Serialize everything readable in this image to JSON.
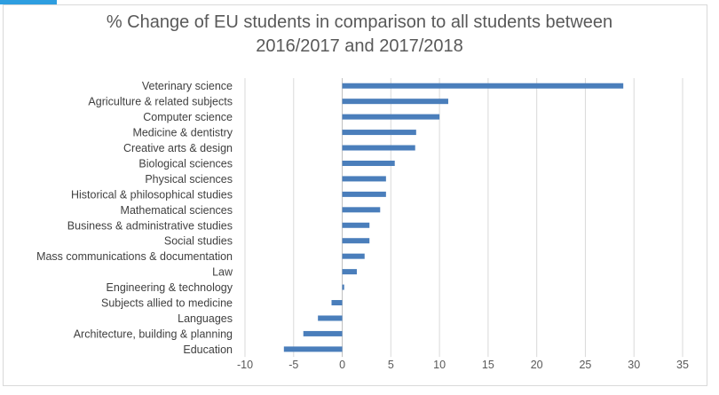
{
  "chart_data": {
    "type": "bar",
    "orientation": "horizontal",
    "title_lines": [
      "% Change of EU students in comparison to all students between",
      "2016/2017 and 2017/2018"
    ],
    "categories": [
      "Veterinary science",
      "Agriculture & related subjects",
      "Computer science",
      "Medicine & dentistry",
      "Creative arts & design",
      "Biological sciences",
      "Physical sciences",
      "Historical & philosophical studies",
      "Mathematical sciences",
      "Business & administrative studies",
      "Social studies",
      "Mass communications & documentation",
      "Law",
      "Engineering & technology",
      "Subjects allied to medicine",
      "Languages",
      "Architecture, building & planning",
      "Education"
    ],
    "values": [
      28.9,
      10.9,
      10.0,
      7.6,
      7.5,
      5.4,
      4.5,
      4.5,
      3.9,
      2.8,
      2.8,
      2.3,
      1.5,
      0.2,
      -1.1,
      -2.5,
      -4.0,
      -6.0
    ],
    "xlim": [
      -10,
      35
    ],
    "xticks": [
      -10,
      -5,
      0,
      5,
      10,
      15,
      20,
      25,
      30,
      35
    ],
    "gridlines": "vertical",
    "bar_color": "#4a7ebb"
  }
}
